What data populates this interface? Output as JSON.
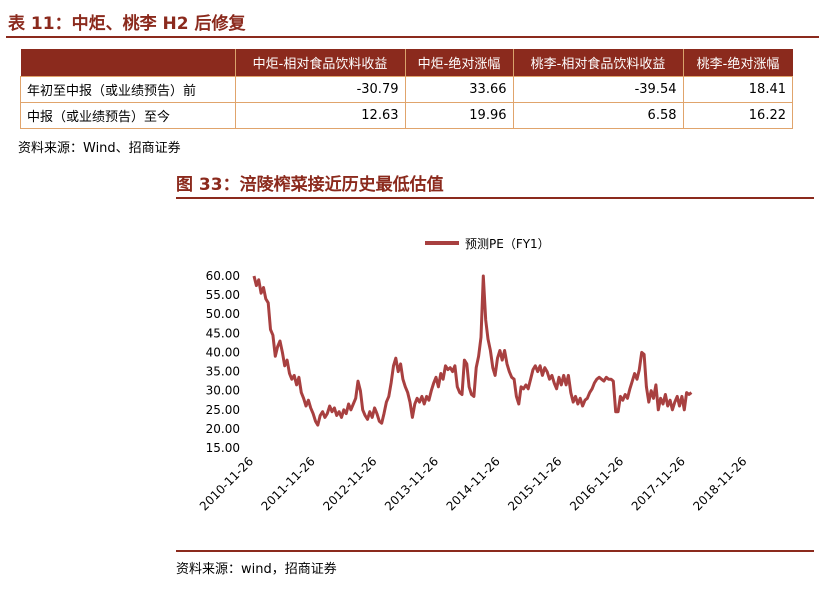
{
  "table": {
    "caption": "表 11：中炬、桃李 H2 后修复",
    "headers": [
      "",
      "中炬-相对食品饮料收益",
      "中炬-绝对涨幅",
      "桃李-相对食品饮料收益",
      "桃李-绝对涨幅"
    ],
    "rows": [
      [
        "年初至中报（或业绩预告）前",
        "-30.79",
        "33.66",
        "-39.54",
        "18.41"
      ],
      [
        "中报（或业绩预告）至今",
        "12.63",
        "19.96",
        "6.58",
        "16.22"
      ]
    ],
    "source": "资料来源：Wind、招商证券"
  },
  "chart": {
    "caption": "图 33：涪陵榨菜接近历史最低估值",
    "source": "资料来源：wind，招商证券"
  },
  "chart_data": {
    "type": "line",
    "legend_position": "top-center",
    "ylim": [
      15,
      60
    ],
    "yticks": [
      "60.00",
      "55.00",
      "50.00",
      "45.00",
      "40.00",
      "35.00",
      "30.00",
      "25.00",
      "20.00",
      "15.00"
    ],
    "xticks": [
      "2010-11-26",
      "2011-11-26",
      "2012-11-26",
      "2013-11-26",
      "2014-11-26",
      "2015-11-26",
      "2016-11-26",
      "2017-11-26",
      "2018-11-26"
    ],
    "grid": false,
    "series": [
      {
        "name": "预测PE（FY1）",
        "color": "#a84040",
        "points": [
          [
            "2010-11-26",
            60.0
          ],
          [
            "2010-12-10",
            57.5
          ],
          [
            "2010-12-24",
            59.0
          ],
          [
            "2011-01-07",
            55.5
          ],
          [
            "2011-01-21",
            57.0
          ],
          [
            "2011-02-04",
            54.0
          ],
          [
            "2011-02-18",
            53.0
          ],
          [
            "2011-03-04",
            46.0
          ],
          [
            "2011-03-18",
            44.5
          ],
          [
            "2011-04-01",
            39.0
          ],
          [
            "2011-04-15",
            41.5
          ],
          [
            "2011-04-29",
            43.0
          ],
          [
            "2011-05-13",
            40.0
          ],
          [
            "2011-05-27",
            36.5
          ],
          [
            "2011-06-10",
            38.0
          ],
          [
            "2011-06-24",
            34.5
          ],
          [
            "2011-07-08",
            33.0
          ],
          [
            "2011-07-22",
            34.0
          ],
          [
            "2011-08-05",
            31.5
          ],
          [
            "2011-08-19",
            33.5
          ],
          [
            "2011-09-02",
            29.5
          ],
          [
            "2011-09-16",
            28.0
          ],
          [
            "2011-09-30",
            26.0
          ],
          [
            "2011-10-14",
            27.5
          ],
          [
            "2011-10-28",
            25.5
          ],
          [
            "2011-11-11",
            24.0
          ],
          [
            "2011-11-25",
            22.0
          ],
          [
            "2011-12-09",
            21.0
          ],
          [
            "2011-12-23",
            23.5
          ],
          [
            "2012-01-06",
            24.5
          ],
          [
            "2012-01-20",
            23.0
          ],
          [
            "2012-02-03",
            24.0
          ],
          [
            "2012-02-17",
            26.0
          ],
          [
            "2012-03-02",
            24.5
          ],
          [
            "2012-03-16",
            25.5
          ],
          [
            "2012-03-30",
            23.5
          ],
          [
            "2012-04-13",
            24.5
          ],
          [
            "2012-04-27",
            23.0
          ],
          [
            "2012-05-11",
            25.0
          ],
          [
            "2012-05-25",
            24.0
          ],
          [
            "2012-06-08",
            26.5
          ],
          [
            "2012-06-22",
            25.0
          ],
          [
            "2012-07-06",
            26.5
          ],
          [
            "2012-07-20",
            28.0
          ],
          [
            "2012-08-03",
            32.5
          ],
          [
            "2012-08-17",
            30.0
          ],
          [
            "2012-08-31",
            25.0
          ],
          [
            "2012-09-14",
            23.5
          ],
          [
            "2012-09-28",
            22.5
          ],
          [
            "2012-10-12",
            24.5
          ],
          [
            "2012-10-26",
            23.0
          ],
          [
            "2012-11-09",
            25.5
          ],
          [
            "2012-11-23",
            24.0
          ],
          [
            "2012-12-07",
            22.0
          ],
          [
            "2012-12-21",
            21.5
          ],
          [
            "2013-01-04",
            24.0
          ],
          [
            "2013-01-18",
            27.0
          ],
          [
            "2013-02-01",
            28.5
          ],
          [
            "2013-02-15",
            32.0
          ],
          [
            "2013-03-01",
            36.5
          ],
          [
            "2013-03-15",
            38.5
          ],
          [
            "2013-03-29",
            35.0
          ],
          [
            "2013-04-12",
            37.0
          ],
          [
            "2013-04-26",
            33.0
          ],
          [
            "2013-05-10",
            31.0
          ],
          [
            "2013-05-24",
            29.5
          ],
          [
            "2013-06-07",
            27.0
          ],
          [
            "2013-06-21",
            23.0
          ],
          [
            "2013-07-05",
            26.5
          ],
          [
            "2013-07-19",
            28.0
          ],
          [
            "2013-08-02",
            27.0
          ],
          [
            "2013-08-16",
            28.5
          ],
          [
            "2013-08-30",
            26.5
          ],
          [
            "2013-09-13",
            28.5
          ],
          [
            "2013-09-27",
            27.5
          ],
          [
            "2013-10-11",
            30.0
          ],
          [
            "2013-10-25",
            32.0
          ],
          [
            "2013-11-08",
            33.5
          ],
          [
            "2013-11-22",
            31.0
          ],
          [
            "2013-12-06",
            34.5
          ],
          [
            "2013-12-20",
            33.0
          ],
          [
            "2014-01-03",
            36.5
          ],
          [
            "2014-01-17",
            35.5
          ],
          [
            "2014-01-31",
            36.0
          ],
          [
            "2014-02-14",
            35.0
          ],
          [
            "2014-02-28",
            36.5
          ],
          [
            "2014-03-14",
            31.0
          ],
          [
            "2014-03-28",
            29.5
          ],
          [
            "2014-04-11",
            29.0
          ],
          [
            "2014-04-25",
            38.0
          ],
          [
            "2014-05-09",
            37.0
          ],
          [
            "2014-05-23",
            31.0
          ],
          [
            "2014-06-06",
            29.0
          ],
          [
            "2014-06-20",
            28.5
          ],
          [
            "2014-07-04",
            36.0
          ],
          [
            "2014-07-18",
            39.0
          ],
          [
            "2014-08-01",
            44.0
          ],
          [
            "2014-08-15",
            60.0
          ],
          [
            "2014-08-29",
            48.5
          ],
          [
            "2014-09-12",
            43.5
          ],
          [
            "2014-09-26",
            40.5
          ],
          [
            "2014-10-10",
            36.0
          ],
          [
            "2014-10-24",
            34.0
          ],
          [
            "2014-11-07",
            38.5
          ],
          [
            "2014-11-21",
            40.5
          ],
          [
            "2014-12-05",
            38.0
          ],
          [
            "2014-12-19",
            40.5
          ],
          [
            "2015-01-02",
            37.0
          ],
          [
            "2015-01-16",
            35.0
          ],
          [
            "2015-01-30",
            33.5
          ],
          [
            "2015-02-13",
            33.0
          ],
          [
            "2015-02-27",
            28.5
          ],
          [
            "2015-03-13",
            26.5
          ],
          [
            "2015-03-27",
            31.0
          ],
          [
            "2015-04-10",
            30.5
          ],
          [
            "2015-04-24",
            31.5
          ],
          [
            "2015-05-08",
            30.5
          ],
          [
            "2015-05-22",
            33.0
          ],
          [
            "2015-06-05",
            35.5
          ],
          [
            "2015-06-19",
            36.5
          ],
          [
            "2015-07-03",
            35.0
          ],
          [
            "2015-07-17",
            36.5
          ],
          [
            "2015-07-31",
            34.0
          ],
          [
            "2015-08-14",
            36.0
          ],
          [
            "2015-08-28",
            35.0
          ],
          [
            "2015-09-11",
            33.0
          ],
          [
            "2015-09-25",
            34.0
          ],
          [
            "2015-10-09",
            32.0
          ],
          [
            "2015-10-23",
            30.5
          ],
          [
            "2015-11-06",
            33.5
          ],
          [
            "2015-11-20",
            31.5
          ],
          [
            "2015-12-04",
            34.0
          ],
          [
            "2015-12-18",
            31.5
          ],
          [
            "2016-01-01",
            34.0
          ],
          [
            "2016-01-15",
            29.5
          ],
          [
            "2016-01-29",
            27.0
          ],
          [
            "2016-02-12",
            28.5
          ],
          [
            "2016-02-26",
            26.5
          ],
          [
            "2016-03-11",
            28.0
          ],
          [
            "2016-03-25",
            26.0
          ],
          [
            "2016-04-08",
            27.5
          ],
          [
            "2016-04-22",
            28.0
          ],
          [
            "2016-05-06",
            29.5
          ],
          [
            "2016-05-20",
            30.5
          ],
          [
            "2016-06-03",
            32.0
          ],
          [
            "2016-06-17",
            33.0
          ],
          [
            "2016-07-01",
            33.5
          ],
          [
            "2016-07-15",
            33.0
          ],
          [
            "2016-07-29",
            32.5
          ],
          [
            "2016-08-12",
            33.5
          ],
          [
            "2016-08-26",
            33.0
          ],
          [
            "2016-09-09",
            33.0
          ],
          [
            "2016-09-23",
            32.5
          ],
          [
            "2016-10-07",
            24.5
          ],
          [
            "2016-10-21",
            24.5
          ],
          [
            "2016-11-04",
            28.5
          ],
          [
            "2016-11-18",
            27.5
          ],
          [
            "2016-12-02",
            29.0
          ],
          [
            "2016-12-16",
            28.0
          ],
          [
            "2016-12-30",
            30.5
          ],
          [
            "2017-01-13",
            32.5
          ],
          [
            "2017-01-27",
            34.5
          ],
          [
            "2017-02-10",
            33.0
          ],
          [
            "2017-02-24",
            35.5
          ],
          [
            "2017-03-10",
            40.0
          ],
          [
            "2017-03-24",
            39.5
          ],
          [
            "2017-04-07",
            31.0
          ],
          [
            "2017-04-21",
            27.0
          ],
          [
            "2017-05-05",
            30.0
          ],
          [
            "2017-05-19",
            28.0
          ],
          [
            "2017-06-02",
            31.5
          ],
          [
            "2017-06-16",
            25.0
          ],
          [
            "2017-06-30",
            28.0
          ],
          [
            "2017-07-14",
            26.5
          ],
          [
            "2017-07-28",
            29.0
          ],
          [
            "2017-08-11",
            26.0
          ],
          [
            "2017-08-25",
            27.5
          ],
          [
            "2017-09-08",
            25.0
          ],
          [
            "2017-09-22",
            27.0
          ],
          [
            "2017-10-06",
            28.5
          ],
          [
            "2017-10-20",
            26.0
          ],
          [
            "2017-11-03",
            28.5
          ],
          [
            "2017-11-17",
            25.0
          ],
          [
            "2017-12-01",
            29.5
          ],
          [
            "2017-12-15",
            29.0
          ],
          [
            "2017-12-29",
            29.5
          ]
        ]
      }
    ]
  }
}
